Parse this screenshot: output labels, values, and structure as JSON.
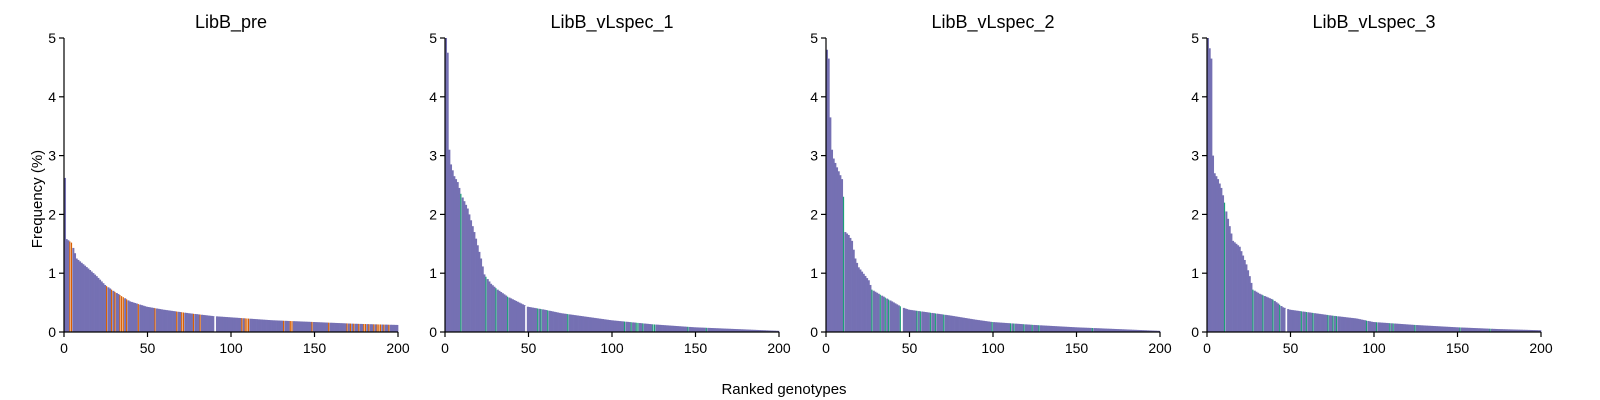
{
  "figure": {
    "xlabel": "Ranked genotypes",
    "ylabel": "Frequency (%)"
  },
  "colors": {
    "bar_base": "#7570b3",
    "highlight_pre": "#d95f02",
    "highlight_post": "#1b9e77"
  },
  "chart_data": [
    {
      "type": "bar",
      "title": "LibB_pre",
      "xlim": [
        0,
        200
      ],
      "ylim": [
        0,
        5
      ],
      "xticks": [
        0,
        50,
        100,
        150,
        200
      ],
      "yticks": [
        0,
        1,
        2,
        3,
        4,
        5
      ],
      "n_genotypes": 200,
      "anchors": [
        [
          1,
          2.62
        ],
        [
          2,
          1.58
        ],
        [
          5,
          1.52
        ],
        [
          8,
          1.25
        ],
        [
          15,
          1.08
        ],
        [
          20,
          0.95
        ],
        [
          25,
          0.8
        ],
        [
          30,
          0.7
        ],
        [
          40,
          0.52
        ],
        [
          50,
          0.43
        ],
        [
          60,
          0.38
        ],
        [
          75,
          0.32
        ],
        [
          90,
          0.27
        ],
        [
          100,
          0.25
        ],
        [
          125,
          0.2
        ],
        [
          150,
          0.17
        ],
        [
          175,
          0.14
        ],
        [
          200,
          0.12
        ]
      ],
      "gaps": [
        91
      ],
      "highlight_color_key": "highlight_pre",
      "highlights": [
        4,
        5,
        26,
        29,
        31,
        34,
        35,
        36,
        38,
        45,
        55,
        68,
        71,
        72,
        78,
        82,
        107,
        109,
        110,
        111,
        132,
        136,
        137,
        149,
        159,
        170,
        172,
        174,
        177,
        180,
        181,
        183,
        186,
        188,
        189,
        190,
        192,
        195
      ]
    },
    {
      "type": "bar",
      "title": "LibB_vLspec_1",
      "xlim": [
        0,
        200
      ],
      "ylim": [
        0,
        5
      ],
      "xticks": [
        0,
        50,
        100,
        150,
        200
      ],
      "yticks": [
        0,
        1,
        2,
        3,
        4,
        5
      ],
      "n_genotypes": 200,
      "anchors": [
        [
          1,
          5.0
        ],
        [
          2,
          4.75
        ],
        [
          3,
          3.1
        ],
        [
          4,
          2.85
        ],
        [
          5,
          2.75
        ],
        [
          6,
          2.65
        ],
        [
          8,
          2.55
        ],
        [
          10,
          2.35
        ],
        [
          14,
          2.1
        ],
        [
          18,
          1.7
        ],
        [
          22,
          1.25
        ],
        [
          24,
          0.98
        ],
        [
          28,
          0.82
        ],
        [
          32,
          0.72
        ],
        [
          38,
          0.6
        ],
        [
          45,
          0.5
        ],
        [
          50,
          0.43
        ],
        [
          60,
          0.38
        ],
        [
          70,
          0.32
        ],
        [
          80,
          0.28
        ],
        [
          100,
          0.2
        ],
        [
          125,
          0.13
        ],
        [
          150,
          0.08
        ],
        [
          175,
          0.05
        ],
        [
          200,
          0.02
        ]
      ],
      "gaps": [
        49
      ],
      "highlight_color_key": "highlight_post",
      "highlights": [
        10,
        25,
        31,
        38,
        56,
        58,
        62,
        74,
        108,
        112,
        115,
        116,
        119,
        125,
        126,
        146,
        157
      ]
    },
    {
      "type": "bar",
      "title": "LibB_vLspec_2",
      "xlim": [
        0,
        200
      ],
      "ylim": [
        0,
        5
      ],
      "xticks": [
        0,
        50,
        100,
        150,
        200
      ],
      "yticks": [
        0,
        1,
        2,
        3,
        4,
        5
      ],
      "n_genotypes": 200,
      "anchors": [
        [
          1,
          4.8
        ],
        [
          2,
          4.65
        ],
        [
          3,
          3.65
        ],
        [
          4,
          3.1
        ],
        [
          5,
          2.95
        ],
        [
          7,
          2.8
        ],
        [
          10,
          2.6
        ],
        [
          11,
          2.3
        ],
        [
          12,
          1.7
        ],
        [
          14,
          1.65
        ],
        [
          16,
          1.55
        ],
        [
          18,
          1.25
        ],
        [
          20,
          1.1
        ],
        [
          26,
          0.88
        ],
        [
          28,
          0.72
        ],
        [
          32,
          0.65
        ],
        [
          40,
          0.52
        ],
        [
          46,
          0.42
        ],
        [
          50,
          0.38
        ],
        [
          60,
          0.34
        ],
        [
          75,
          0.28
        ],
        [
          90,
          0.21
        ],
        [
          100,
          0.17
        ],
        [
          125,
          0.12
        ],
        [
          150,
          0.08
        ],
        [
          175,
          0.05
        ],
        [
          200,
          0.02
        ]
      ],
      "gaps": [
        46
      ],
      "highlight_color_key": "highlight_post",
      "highlights": [
        11,
        28,
        33,
        36,
        38,
        45,
        55,
        57,
        63,
        66,
        71,
        100,
        111,
        113,
        119,
        124,
        128,
        160
      ]
    },
    {
      "type": "bar",
      "title": "LibB_vLspec_3",
      "xlim": [
        0,
        200
      ],
      "ylim": [
        0,
        5
      ],
      "xticks": [
        0,
        50,
        100,
        150,
        200
      ],
      "yticks": [
        0,
        1,
        2,
        3,
        4,
        5
      ],
      "n_genotypes": 200,
      "anchors": [
        [
          1,
          5.0
        ],
        [
          3,
          4.65
        ],
        [
          4,
          3.0
        ],
        [
          5,
          2.7
        ],
        [
          7,
          2.6
        ],
        [
          9,
          2.45
        ],
        [
          11,
          2.2
        ],
        [
          12,
          2.05
        ],
        [
          16,
          1.55
        ],
        [
          20,
          1.45
        ],
        [
          24,
          1.15
        ],
        [
          26,
          0.95
        ],
        [
          28,
          0.72
        ],
        [
          32,
          0.65
        ],
        [
          40,
          0.55
        ],
        [
          46,
          0.42
        ],
        [
          50,
          0.38
        ],
        [
          60,
          0.34
        ],
        [
          75,
          0.28
        ],
        [
          90,
          0.23
        ],
        [
          100,
          0.17
        ],
        [
          125,
          0.12
        ],
        [
          150,
          0.08
        ],
        [
          175,
          0.05
        ],
        [
          200,
          0.03
        ]
      ],
      "gaps": [
        48
      ],
      "highlight_color_key": "highlight_post",
      "highlights": [
        11,
        28,
        34,
        40,
        44,
        57,
        60,
        64,
        73,
        76,
        78,
        96,
        102,
        110,
        112,
        125,
        152,
        170
      ]
    }
  ]
}
